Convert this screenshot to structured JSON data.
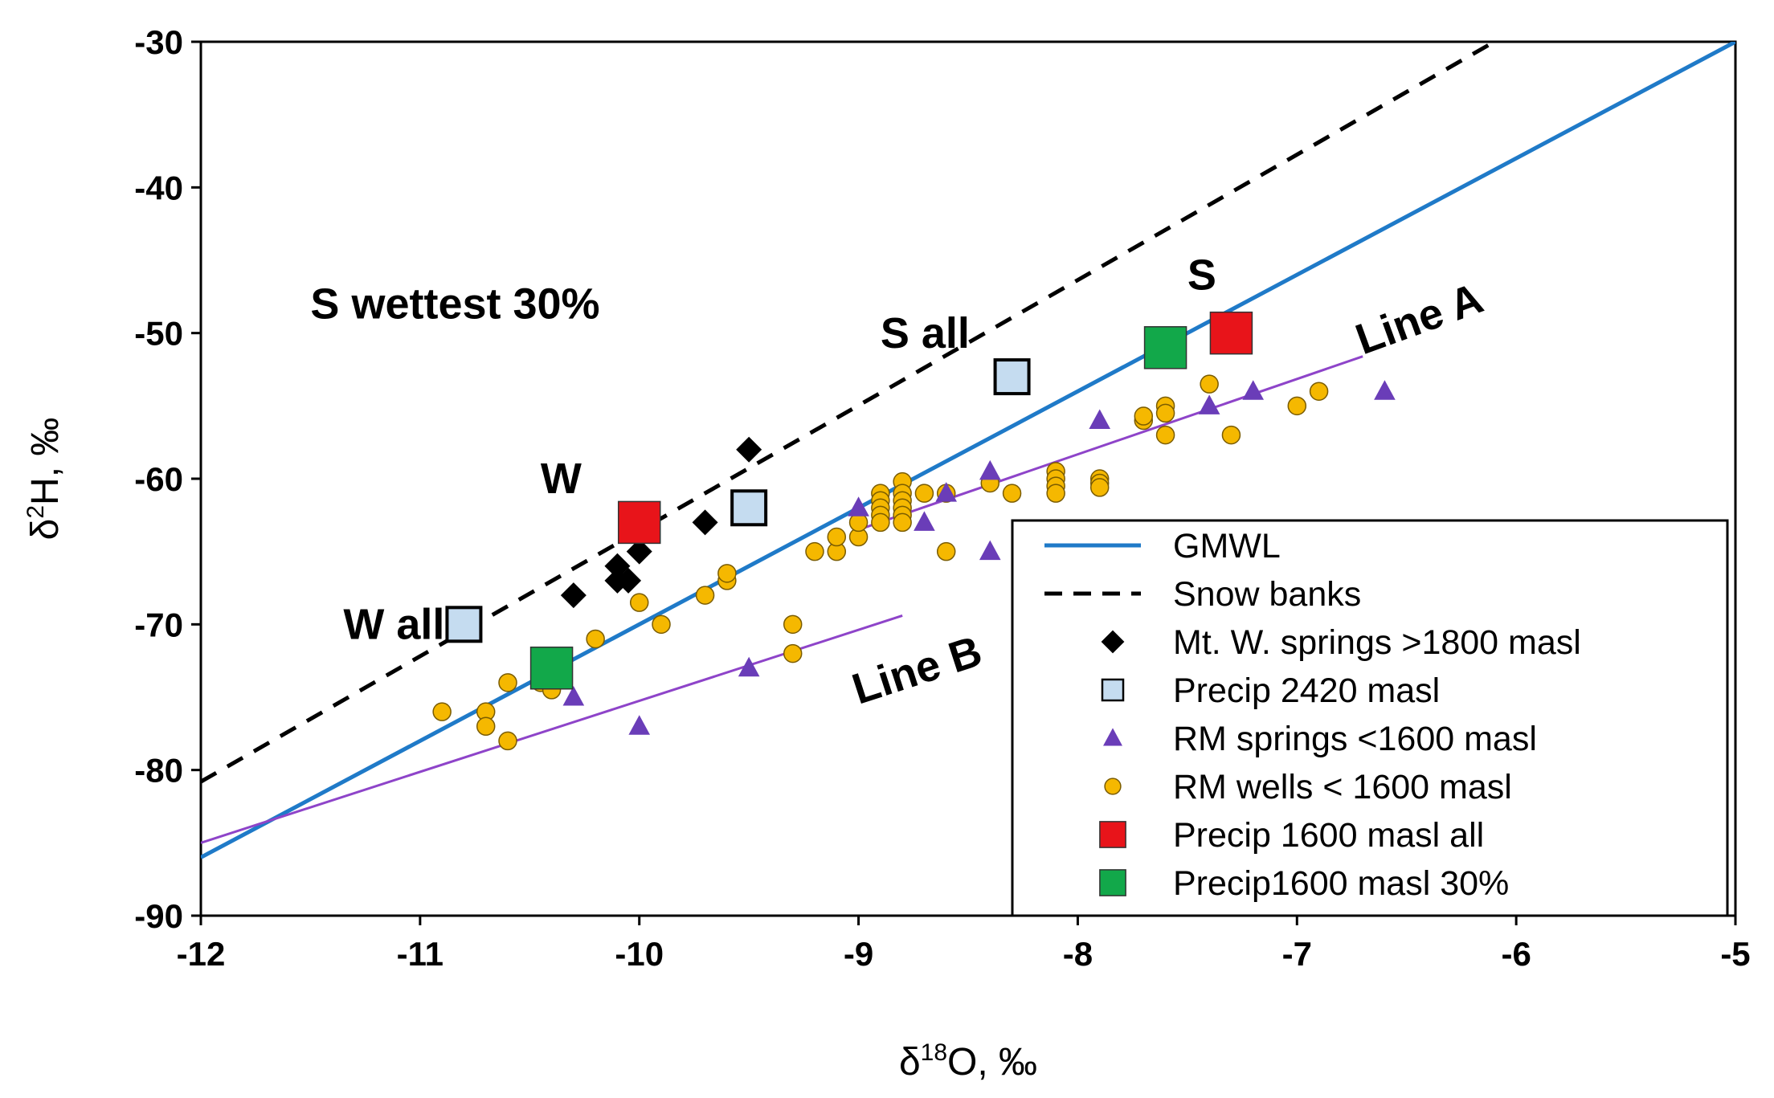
{
  "chart_data": {
    "type": "scatter",
    "xlabel": {
      "prefix": "δ",
      "sup": "18",
      "suffix": "O, ‰"
    },
    "ylabel": {
      "prefix": "δ",
      "sup": "2",
      "suffix": "H, ‰"
    },
    "xlim": [
      -12,
      -5
    ],
    "ylim": [
      -90,
      -30
    ],
    "xticks": [
      -12,
      -11,
      -10,
      -9,
      -8,
      -7,
      -6,
      -5
    ],
    "yticks": [
      -90,
      -80,
      -70,
      -60,
      -50,
      -40,
      -30
    ],
    "colors": {
      "gmwl": "#1f7ac8",
      "snow": "#000000",
      "lineAB": "#8e44c9",
      "diamond": "#000000",
      "precip2420_fill": "#c5dcf0",
      "triangle": "#6a3db8",
      "circle_fill": "#f5b800",
      "circle_edge": "#7a5c00",
      "red": "#e8141a",
      "green": "#12a84a"
    },
    "lines": [
      {
        "name": "GMWL",
        "x": [
          -12,
          -5
        ],
        "y": [
          -86,
          -30
        ]
      },
      {
        "name": "Snow banks",
        "x": [
          -12,
          -6.1
        ],
        "y": [
          -80.8,
          -30
        ]
      },
      {
        "name": "Line A",
        "x": [
          -9.0,
          -6.7
        ],
        "y": [
          -63.5,
          -51.6
        ]
      },
      {
        "name": "Line B",
        "x": [
          -12,
          -8.8
        ],
        "y": [
          -85,
          -69.4
        ]
      }
    ],
    "series": [
      {
        "name": "Mt. W. springs >1800 masl",
        "marker": "diamond",
        "points": [
          [
            -10.3,
            -68
          ],
          [
            -10.1,
            -66
          ],
          [
            -10.1,
            -67
          ],
          [
            -10.05,
            -67
          ],
          [
            -10.0,
            -65
          ],
          [
            -9.7,
            -63
          ],
          [
            -9.5,
            -58
          ]
        ]
      },
      {
        "name": "Precip 2420 masl",
        "marker": "square-open",
        "points": [
          [
            -10.8,
            -70
          ],
          [
            -9.5,
            -62
          ],
          [
            -8.3,
            -53
          ]
        ]
      },
      {
        "name": "RM springs <1600 masl",
        "marker": "triangle",
        "points": [
          [
            -10.3,
            -75
          ],
          [
            -10.0,
            -77
          ],
          [
            -9.5,
            -73
          ],
          [
            -9.0,
            -62
          ],
          [
            -8.7,
            -63
          ],
          [
            -8.6,
            -61
          ],
          [
            -8.4,
            -59.5
          ],
          [
            -8.4,
            -65
          ],
          [
            -7.9,
            -56
          ],
          [
            -7.4,
            -55
          ],
          [
            -7.2,
            -54
          ],
          [
            -6.6,
            -54
          ]
        ]
      },
      {
        "name": "RM wells < 1600 masl",
        "marker": "circle",
        "points": [
          [
            -10.9,
            -76
          ],
          [
            -10.7,
            -76
          ],
          [
            -10.7,
            -77
          ],
          [
            -10.6,
            -78
          ],
          [
            -10.6,
            -74
          ],
          [
            -10.45,
            -74
          ],
          [
            -10.4,
            -74.5
          ],
          [
            -10.2,
            -71
          ],
          [
            -10.0,
            -68.5
          ],
          [
            -9.9,
            -70
          ],
          [
            -9.7,
            -68
          ],
          [
            -9.6,
            -67
          ],
          [
            -9.6,
            -66.5
          ],
          [
            -9.3,
            -70
          ],
          [
            -9.3,
            -72
          ],
          [
            -9.2,
            -65
          ],
          [
            -9.1,
            -65
          ],
          [
            -9.1,
            -64
          ],
          [
            -9.0,
            -64
          ],
          [
            -9.0,
            -63
          ],
          [
            -8.9,
            -61
          ],
          [
            -8.9,
            -61.5
          ],
          [
            -8.9,
            -62
          ],
          [
            -8.9,
            -62.5
          ],
          [
            -8.9,
            -63
          ],
          [
            -8.8,
            -60.2
          ],
          [
            -8.8,
            -61
          ],
          [
            -8.8,
            -61.5
          ],
          [
            -8.8,
            -62
          ],
          [
            -8.8,
            -62.5
          ],
          [
            -8.8,
            -63
          ],
          [
            -8.7,
            -61
          ],
          [
            -8.6,
            -61
          ],
          [
            -8.6,
            -65
          ],
          [
            -8.4,
            -60.3
          ],
          [
            -8.3,
            -61
          ],
          [
            -8.1,
            -59.5
          ],
          [
            -8.1,
            -60
          ],
          [
            -8.1,
            -60.5
          ],
          [
            -8.1,
            -61
          ],
          [
            -7.9,
            -60
          ],
          [
            -7.9,
            -60.3
          ],
          [
            -7.9,
            -60.6
          ],
          [
            -7.7,
            -56
          ],
          [
            -7.7,
            -55.7
          ],
          [
            -7.6,
            -55
          ],
          [
            -7.6,
            -55.5
          ],
          [
            -7.6,
            -57
          ],
          [
            -7.4,
            -53.5
          ],
          [
            -7.3,
            -57
          ],
          [
            -7.0,
            -55
          ],
          [
            -6.9,
            -54
          ]
        ]
      },
      {
        "name": "Precip 1600 masl all",
        "marker": "square-red",
        "points": [
          [
            -10.0,
            -63
          ],
          [
            -7.3,
            -50
          ]
        ]
      },
      {
        "name": "Precip1600 masl 30%",
        "marker": "square-green",
        "points": [
          [
            -10.4,
            -73
          ],
          [
            -7.6,
            -51
          ]
        ]
      }
    ],
    "annotations": [
      {
        "text": "S wettest 30%",
        "x": -11.5,
        "y": -49,
        "rotate": 0
      },
      {
        "text": "S all",
        "x": -8.9,
        "y": -51,
        "rotate": 0
      },
      {
        "text": "S",
        "x": -7.5,
        "y": -47,
        "rotate": 0
      },
      {
        "text": "W",
        "x": -10.45,
        "y": -61,
        "rotate": 0
      },
      {
        "text": "W all",
        "x": -11.35,
        "y": -71,
        "rotate": 0
      },
      {
        "text": "Line A",
        "x": -6.7,
        "y": -51.5,
        "rotate": -20
      },
      {
        "text": "Line B",
        "x": -9.0,
        "y": -75.5,
        "rotate": -18
      }
    ],
    "legend": {
      "position": "bottom-right",
      "entries": [
        {
          "label": "GMWL",
          "kind": "line-solid"
        },
        {
          "label": "Snow banks",
          "kind": "line-dashed"
        },
        {
          "label": "Mt. W. springs >1800 masl",
          "kind": "diamond"
        },
        {
          "label": "Precip 2420 masl",
          "kind": "square-open"
        },
        {
          "label": "RM springs <1600 masl",
          "kind": "triangle"
        },
        {
          "label": "RM wells < 1600 masl",
          "kind": "circle"
        },
        {
          "label": "Precip 1600 masl all",
          "kind": "square-red"
        },
        {
          "label": "Precip1600 masl 30%",
          "kind": "square-green"
        }
      ]
    }
  }
}
